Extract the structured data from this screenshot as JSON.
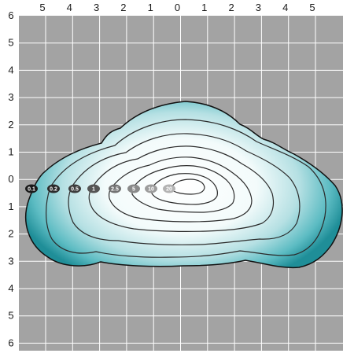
{
  "top_axis_labels": [
    "5",
    "4",
    "3",
    "2",
    "1",
    "0",
    "1",
    "2",
    "3",
    "4",
    "5"
  ],
  "left_axis_labels": [
    "6",
    "5",
    "4",
    "3",
    "2",
    "1",
    "0",
    "1",
    "2",
    "3",
    "4",
    "5",
    "6"
  ],
  "isolines": [
    {
      "label": "0.1",
      "badge_color": "#1a1a1a"
    },
    {
      "label": "0.2",
      "badge_color": "#2b2b2b"
    },
    {
      "label": "0.5",
      "badge_color": "#3c3c3c"
    },
    {
      "label": "1",
      "badge_color": "#555555"
    },
    {
      "label": "2.5",
      "badge_color": "#737373"
    },
    {
      "label": "5",
      "badge_color": "#8a8a8a"
    },
    {
      "label": "10",
      "badge_color": "#9d9d9d"
    },
    {
      "label": "20",
      "badge_color": "#b3b3b3"
    }
  ],
  "colors": {
    "grid_background": "#a3a3a3",
    "grid_lines": "#ffffff",
    "gradient_center": "#ffffff",
    "gradient_edge": "#2a9aa3",
    "contour_stroke": "#2b2b2b"
  }
}
